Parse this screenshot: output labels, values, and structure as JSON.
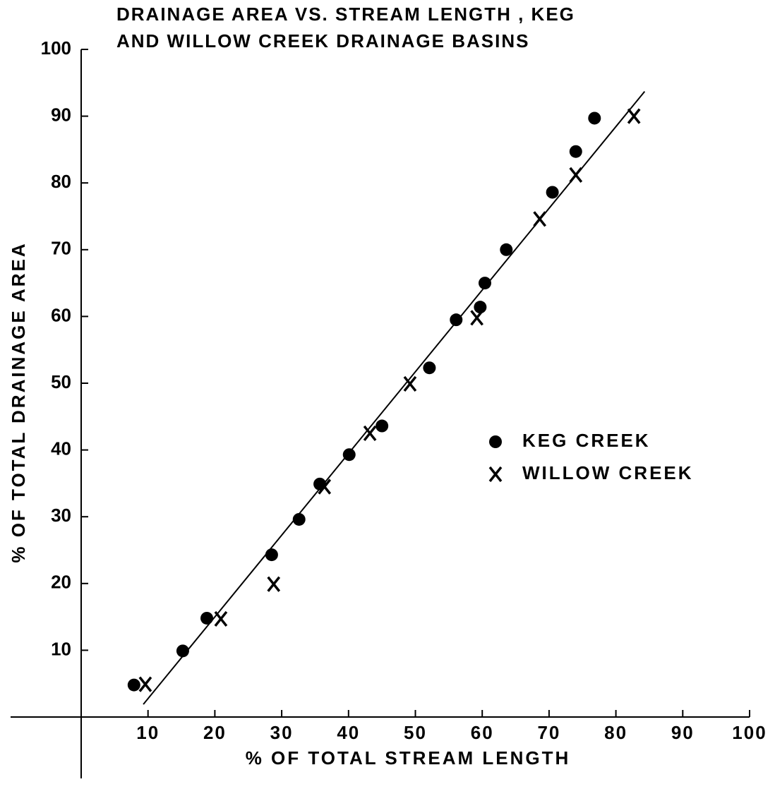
{
  "chart_data": {
    "type": "scatter",
    "title": [
      "DRAINAGE AREA VS. STREAM LENGTH , KEG",
      "AND  WILLOW CREEK DRAINAGE BASINS"
    ],
    "x_label": "%  OF  TOTAL  STREAM  LENGTH",
    "y_label": "%  OF  TOTAL  DRAINAGE  AREA",
    "xlim": [
      0,
      100
    ],
    "ylim": [
      0,
      100
    ],
    "xticks": [
      10,
      20,
      30,
      40,
      50,
      60,
      70,
      80,
      90,
      100
    ],
    "yticks": [
      10,
      20,
      30,
      40,
      50,
      60,
      70,
      80,
      90,
      100
    ],
    "color": "#000000",
    "series": [
      {
        "name": "KEG CREEK",
        "marker": "circle",
        "x": [
          7.9,
          15.2,
          18.8,
          28.5,
          32.6,
          35.7,
          40.1,
          45.0,
          52.1,
          56.1,
          59.7,
          60.4,
          63.6,
          70.5,
          74.0,
          76.8
        ],
        "values": [
          4.8,
          9.9,
          14.8,
          24.3,
          29.6,
          34.9,
          39.3,
          43.6,
          52.3,
          59.5,
          61.4,
          65.0,
          70.0,
          78.6,
          84.7,
          89.7
        ]
      },
      {
        "name": "WILLOW CREEK",
        "marker": "x",
        "x": [
          9.6,
          20.9,
          28.8,
          36.4,
          43.2,
          49.2,
          59.2,
          68.6,
          74.0,
          82.7
        ],
        "values": [
          4.9,
          14.7,
          19.9,
          34.5,
          42.5,
          49.9,
          59.8,
          74.6,
          81.2,
          90.0
        ]
      }
    ],
    "fit_line": {
      "x": [
        9.3,
        84.3
      ],
      "y": [
        1.9,
        93.7
      ]
    }
  }
}
